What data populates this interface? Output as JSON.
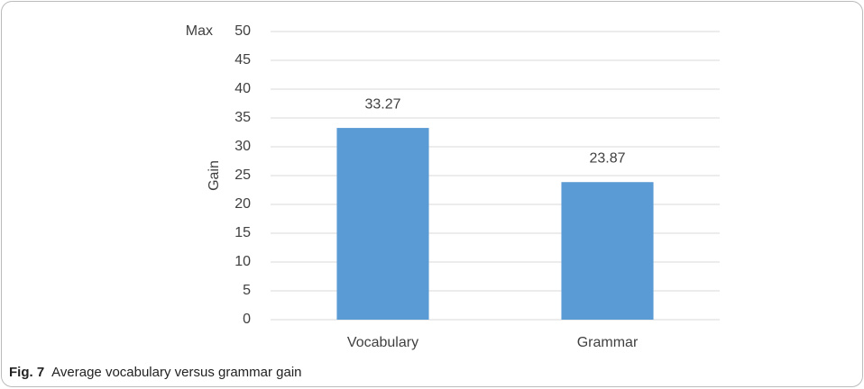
{
  "chart_data": {
    "type": "bar",
    "y_label": "Gain",
    "annotation": "Max",
    "categories": [
      "Vocabulary",
      "Grammar"
    ],
    "values": [
      33.27,
      23.87
    ],
    "color": "#5b9bd5",
    "ylim": [
      0,
      50
    ],
    "yticks": [
      0,
      5,
      10,
      15,
      20,
      25,
      30,
      35,
      40,
      45,
      50
    ],
    "grid": true
  },
  "caption": {
    "label": "Fig. 7",
    "text": "Average vocabulary versus grammar gain"
  }
}
